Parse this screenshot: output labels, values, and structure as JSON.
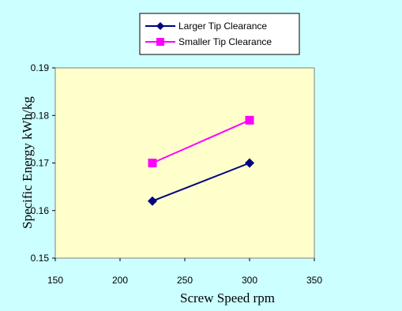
{
  "chart_data": {
    "type": "line",
    "xlabel": "Screw Speed    rpm",
    "ylabel": "Specific Energy   kWh/kg",
    "xlim": [
      150,
      350
    ],
    "ylim": [
      0.15,
      0.19
    ],
    "xticks": [
      "150",
      "200",
      "250",
      "300",
      "350"
    ],
    "yticks": [
      "0.15",
      "0.16",
      "0.17",
      "0.18",
      "0.19"
    ],
    "grid": false,
    "legend_position": "top-right",
    "series": [
      {
        "name": "Larger Tip Clearance",
        "marker": "diamond",
        "color": "#000080",
        "x": [
          225,
          300
        ],
        "y": [
          0.162,
          0.17
        ]
      },
      {
        "name": "Smaller Tip Clearance",
        "marker": "square",
        "color": "#FF00FF",
        "x": [
          225,
          300
        ],
        "y": [
          0.17,
          0.179
        ]
      }
    ],
    "colors": {
      "page_background": "#CCFFFF",
      "plot_background": "#FFFFCC"
    }
  }
}
